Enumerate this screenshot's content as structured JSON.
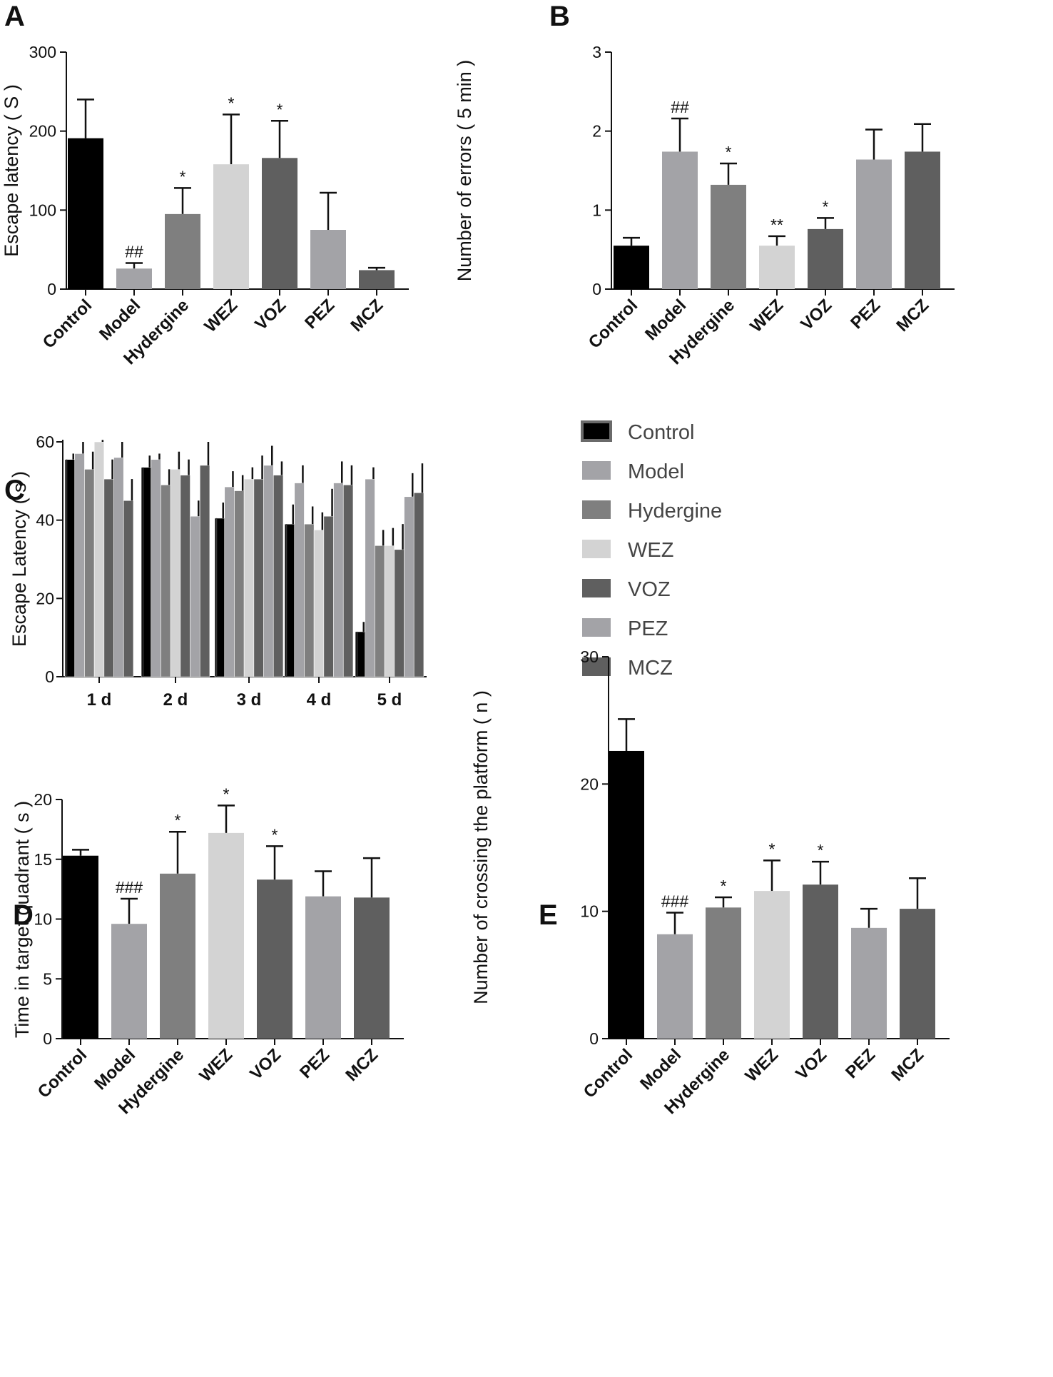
{
  "colors": {
    "Control": "#000000",
    "Model": "#a3a3a7",
    "Hydergine": "#7f7f7f",
    "WEZ": "#d3d3d3",
    "VOZ": "#5f5f5f",
    "PEZ": "#a3a3a7",
    "MCZ": "#5f5f5f"
  },
  "chart_data": [
    {
      "panel": "A",
      "type": "bar",
      "ylabel": "Escape latency ( S )",
      "ylim": [
        0,
        300
      ],
      "yticks": [
        "0",
        "100",
        "200",
        "300"
      ],
      "categories": [
        "Control",
        "Model",
        "Hydergine",
        "WEZ",
        "VOZ",
        "PEZ",
        "MCZ"
      ],
      "values": [
        191,
        26,
        95,
        158,
        166,
        75,
        24
      ],
      "errors": [
        49,
        7,
        33,
        63,
        47,
        47,
        3
      ],
      "annotations": [
        "",
        "##",
        "*",
        "*",
        "*",
        "",
        ""
      ]
    },
    {
      "panel": "B",
      "type": "bar",
      "ylabel": "Number of errors ( 5 min )",
      "ylim": [
        0,
        3
      ],
      "yticks": [
        "0",
        "1",
        "2",
        "3"
      ],
      "categories": [
        "Control",
        "Model",
        "Hydergine",
        "WEZ",
        "VOZ",
        "PEZ",
        "MCZ"
      ],
      "values": [
        0.55,
        1.74,
        1.32,
        0.55,
        0.76,
        1.64,
        1.74
      ],
      "errors": [
        0.1,
        0.42,
        0.27,
        0.12,
        0.14,
        0.38,
        0.35
      ],
      "annotations": [
        "",
        "##",
        "*",
        "**",
        "*",
        "",
        ""
      ]
    },
    {
      "panel": "C",
      "type": "bar",
      "ylabel": "Escape Latency ( s )",
      "ylim": [
        0,
        60
      ],
      "yticks": [
        "0",
        "20",
        "40",
        "60"
      ],
      "categories": [
        "1 d",
        "2 d",
        "3 d",
        "4 d",
        "5 d"
      ],
      "series": [
        {
          "name": "Control",
          "values": [
            55.5,
            53.5,
            40.5,
            39,
            11.5
          ],
          "errors": [
            1.5,
            3,
            4,
            5,
            2.5
          ]
        },
        {
          "name": "Model",
          "values": [
            57,
            55.5,
            48.5,
            49.5,
            50.5
          ],
          "errors": [
            3,
            1.5,
            4,
            4.5,
            3
          ]
        },
        {
          "name": "Hydergine",
          "values": [
            53,
            49,
            47.5,
            39,
            33.5
          ],
          "errors": [
            4.5,
            4,
            4,
            4.5,
            4
          ]
        },
        {
          "name": "WEZ",
          "values": [
            60,
            53,
            50.5,
            37.5,
            33.5
          ],
          "errors": [
            0.5,
            4.5,
            3,
            4.5,
            4.5
          ]
        },
        {
          "name": "VOZ",
          "values": [
            50.5,
            51.5,
            50.5,
            41,
            32.5
          ],
          "errors": [
            5,
            4,
            6,
            7,
            6.5
          ]
        },
        {
          "name": "PEZ",
          "values": [
            56,
            41,
            54,
            49.5,
            46
          ],
          "errors": [
            4,
            4,
            5,
            5.5,
            6
          ]
        },
        {
          "name": "MCZ",
          "values": [
            45,
            54,
            51.5,
            49,
            47
          ],
          "errors": [
            5.5,
            6,
            3.5,
            5,
            7.5
          ]
        }
      ],
      "legend": [
        "Control",
        "Model",
        "Hydergine",
        "WEZ",
        "VOZ",
        "PEZ",
        "MCZ"
      ]
    },
    {
      "panel": "D",
      "type": "bar",
      "ylabel": "Time in target quadrant ( s )",
      "ylim": [
        0,
        20
      ],
      "yticks": [
        "0",
        "5",
        "10",
        "15",
        "20"
      ],
      "categories": [
        "Control",
        "Model",
        "Hydergine",
        "WEZ",
        "VOZ",
        "PEZ",
        "MCZ"
      ],
      "values": [
        15.3,
        9.6,
        13.8,
        17.2,
        13.3,
        11.9,
        11.8
      ],
      "errors": [
        0.5,
        2.1,
        3.5,
        2.3,
        2.8,
        2.1,
        3.3
      ],
      "annotations": [
        "",
        "###",
        "*",
        "*",
        "*",
        "",
        ""
      ]
    },
    {
      "panel": "E",
      "type": "bar",
      "ylabel": "Number of crossing the platform ( n )",
      "ylim": [
        0,
        30
      ],
      "yticks": [
        "0",
        "10",
        "20",
        "30"
      ],
      "categories": [
        "Control",
        "Model",
        "Hydergine",
        "WEZ",
        "VOZ",
        "PEZ",
        "MCZ"
      ],
      "values": [
        22.6,
        8.2,
        10.3,
        11.6,
        12.1,
        8.7,
        10.2
      ],
      "errors": [
        2.5,
        1.7,
        0.8,
        2.4,
        1.8,
        1.5,
        2.4
      ],
      "annotations": [
        "",
        "###",
        "*",
        "*",
        "*",
        "",
        ""
      ]
    }
  ]
}
